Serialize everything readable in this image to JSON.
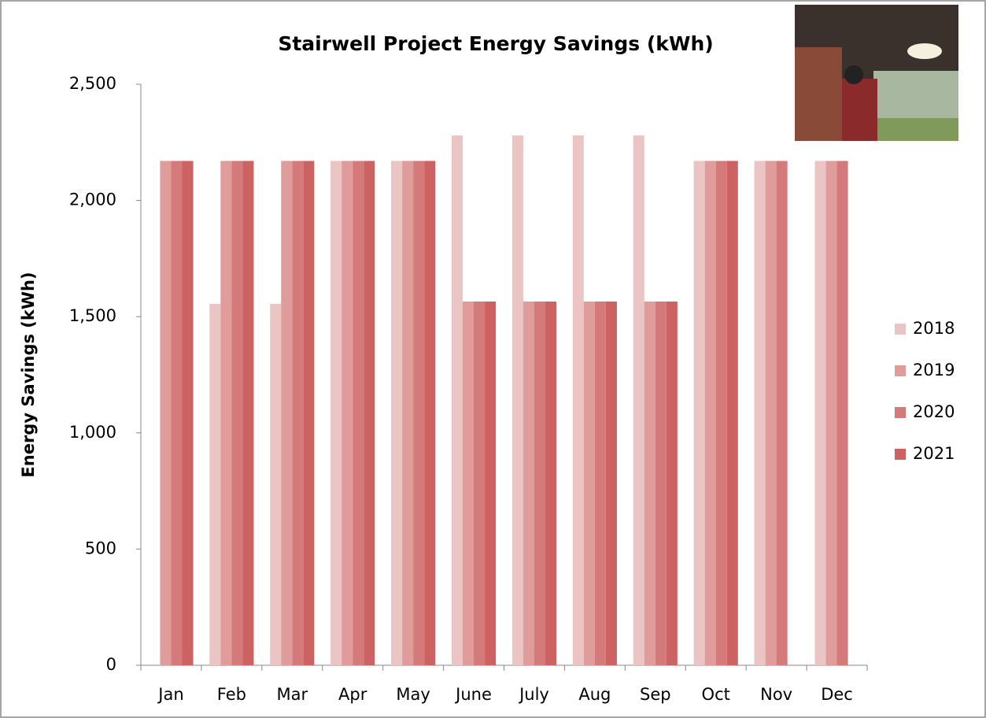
{
  "chart_data": {
    "type": "bar",
    "title": "Stairwell Project Energy Savings (kWh)",
    "y_label": "Energy Savings (kWh)",
    "categories": [
      "Jan",
      "Feb",
      "Mar",
      "Apr",
      "May",
      "June",
      "July",
      "Aug",
      "Sep",
      "Oct",
      "Nov",
      "Dec"
    ],
    "series": [
      {
        "name": "2018",
        "color": "#ebc4c4",
        "values": [
          null,
          1555,
          1555,
          2170,
          2170,
          2280,
          2280,
          2280,
          2280,
          2170,
          2170,
          2170
        ]
      },
      {
        "name": "2019",
        "color": "#e09b9b",
        "values": [
          2170,
          2170,
          2170,
          2170,
          2170,
          1565,
          1565,
          1565,
          1565,
          2170,
          2170,
          2170
        ]
      },
      {
        "name": "2020",
        "color": "#d57a7a",
        "values": [
          2170,
          2170,
          2170,
          2170,
          2170,
          1565,
          1565,
          1565,
          1565,
          2170,
          2170,
          2170
        ]
      },
      {
        "name": "2021",
        "color": "#cd6262",
        "values": [
          2170,
          2170,
          2170,
          2170,
          2170,
          1565,
          1565,
          1565,
          1565,
          2170,
          null,
          null
        ]
      }
    ],
    "ylim": [
      0,
      2500
    ],
    "yticks": [
      0,
      {
        "value": 500,
        "label": "500"
      },
      {
        "value": 1000,
        "label": "1,000"
      },
      {
        "value": 1500,
        "label": "1,500"
      },
      {
        "value": 2000,
        "label": "2,000"
      },
      {
        "value": 2500,
        "label": "2,500"
      }
    ],
    "grid": false,
    "legend": "right"
  }
}
